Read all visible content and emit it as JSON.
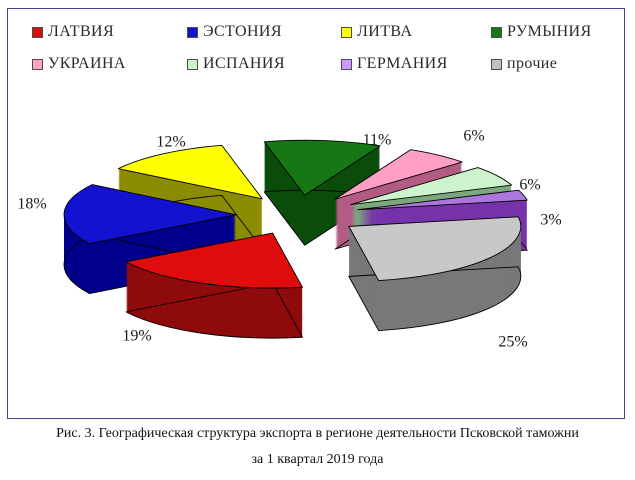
{
  "frame": {
    "border_color": "#46468c",
    "background": "#ffffff"
  },
  "legend": {
    "position": "top",
    "items": [
      {
        "label": "ЛАТВИЯ",
        "color": "#d90d0d"
      },
      {
        "label": "ЭСТОНИЯ",
        "color": "#1212d0"
      },
      {
        "label": "ЛИТВА",
        "color": "#ffff00"
      },
      {
        "label": "РУМЫНИЯ",
        "color": "#157815"
      },
      {
        "label": "УКРАИНА",
        "color": "#ffa3c8"
      },
      {
        "label": "ИСПАНИЯ",
        "color": "#ccf2cc"
      },
      {
        "label": "ГЕРМАНИЯ",
        "color": "#cc99ff"
      },
      {
        "label": "прочие",
        "color": "#c0c0c0"
      }
    ]
  },
  "chart_data": {
    "type": "pie",
    "style": "3d-exploded",
    "title": "",
    "unit": "%",
    "legend_position": "top",
    "categories": [
      "ЛАТВИЯ",
      "ЭСТОНИЯ",
      "ЛИТВА",
      "РУМЫНИЯ",
      "УКРАИНА",
      "ИСПАНИЯ",
      "ГЕРМАНИЯ",
      "прочие"
    ],
    "values": [
      19,
      18,
      12,
      11,
      6,
      6,
      3,
      25
    ],
    "data_labels": [
      "19%",
      "18%",
      "12%",
      "11%",
      "6%",
      "6%",
      "3%",
      "25%"
    ],
    "top_colors": [
      "#e00c0c",
      "#1212d0",
      "#ffff00",
      "#157815",
      "#ff9fc6",
      "#cdf3cd",
      "#ab77dc",
      "#c8c8c8"
    ],
    "side_colors": [
      "#8f0b0b",
      "#00008b",
      "#8c8c00",
      "#0a4d0a",
      "#b25c84",
      "#7ca97c",
      "#7733aa",
      "#787878"
    ],
    "start_angle_clockwise_from_top_deg": 170
  },
  "caption": {
    "line1": "Рис. 3. Географическая структура экспорта в регионе деятельности Псковской таможни",
    "line2": "за 1 квартал 2019 года"
  }
}
